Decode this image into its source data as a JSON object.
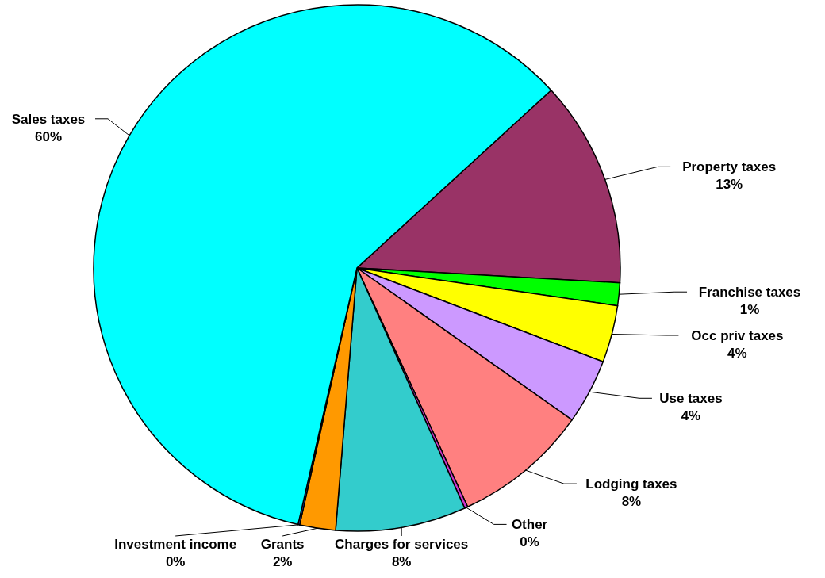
{
  "chart_data": {
    "type": "pie",
    "categories": [
      "Property taxes",
      "Franchise taxes",
      "Occ priv taxes",
      "Use taxes",
      "Lodging taxes",
      "Other",
      "Charges for services",
      "Grants",
      "Investment income",
      "Sales taxes"
    ],
    "values": [
      12.7,
      1.4,
      3.5,
      4.0,
      8.3,
      0.2,
      8.0,
      2.2,
      0.1,
      59.6
    ],
    "value_labels": [
      "13%",
      "1%",
      "4%",
      "4%",
      "8%",
      "0%",
      "8%",
      "2%",
      "0%",
      "60%"
    ],
    "colors": [
      "#993366",
      "#00ff00",
      "#ffff00",
      "#cc99ff",
      "#ff8080",
      "#cc33cc",
      "#33cccc",
      "#ff9900",
      "#3366ff",
      "#00ffff"
    ]
  }
}
